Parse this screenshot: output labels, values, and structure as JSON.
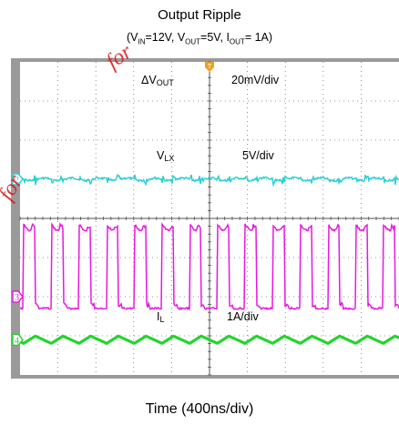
{
  "title": "Output Ripple",
  "subtitle_parts": {
    "vin_label": "V",
    "vin_sub": "IN",
    "vin_value": "=12V, ",
    "vout_label": "V",
    "vout_sub": "OUT",
    "vout_value": "=5V, ",
    "iout_label": "I",
    "iout_sub": "OUT",
    "iout_value": "= 1A)"
  },
  "watermark_text": "for",
  "colors": {
    "screen_bg": "#ffffff",
    "frame": "#9a9a9a",
    "grid": "#555555",
    "vout": "#2ad1d6",
    "vlx": "#e619e0",
    "il": "#22d62a",
    "watermark": "#dc1414"
  },
  "chart_data": {
    "type": "line",
    "title": "Output Ripple",
    "xlabel": "Time (400ns/div)",
    "trigger_marker": "T",
    "channels": [
      {
        "id": "2",
        "name": "ΔV",
        "name_sub": "OUT",
        "scale": "20mV/div",
        "baseline_div": 3.0,
        "waveform": "ripple",
        "color": "#2ad1d6"
      },
      {
        "id": "1",
        "name": "V",
        "name_sub": "LX",
        "scale": "5V/div",
        "high_div": 4.3,
        "low_div": 6.3,
        "waveform": "square",
        "color": "#e619e0"
      },
      {
        "id": "3",
        "name": "",
        "name_sub": "",
        "scale": "",
        "marker_div": 6.0,
        "waveform": "marker",
        "color": "#e619e0"
      },
      {
        "id": "4",
        "name": "I",
        "name_sub": "L",
        "scale": "1A/div",
        "baseline_div": 7.1,
        "waveform": "triangle",
        "color": "#22d62a"
      }
    ],
    "grid": {
      "x_divisions": 10,
      "y_divisions": 8
    },
    "switching_period_divisions": 0.73,
    "switching_duty": 0.42
  }
}
